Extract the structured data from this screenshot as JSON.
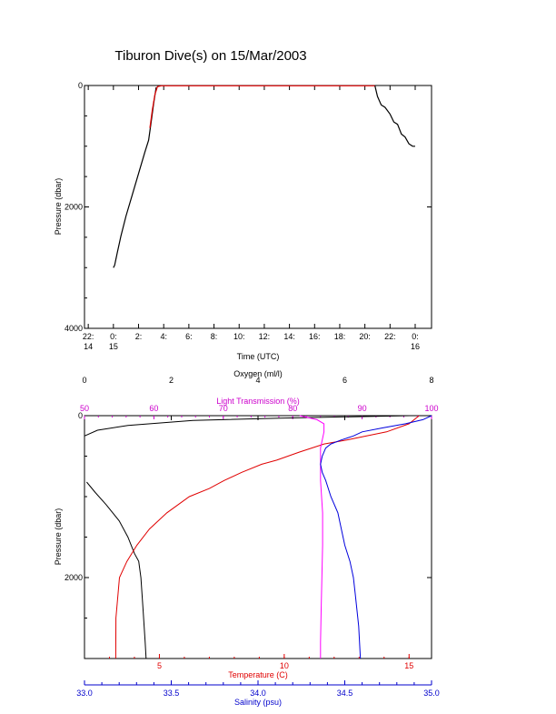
{
  "title": "Tiburon Dive(s) on 15/Mar/2003",
  "chart_data": [
    {
      "type": "line",
      "title": "Tiburon Dive(s) on 15/Mar/2003",
      "xlabel": "Time (UTC)",
      "ylabel": "Pressure (dbar)",
      "xlim": [
        -2.3,
        25.3
      ],
      "ylim": [
        4000,
        0
      ],
      "x_ticks": [
        {
          "v": -2,
          "line1": "22:",
          "line2": "14"
        },
        {
          "v": 0,
          "line1": "0:",
          "line2": "15"
        },
        {
          "v": 2,
          "line1": "2:",
          "line2": ""
        },
        {
          "v": 4,
          "line1": "4:",
          "line2": ""
        },
        {
          "v": 6,
          "line1": "6:",
          "line2": ""
        },
        {
          "v": 8,
          "line1": "8:",
          "line2": ""
        },
        {
          "v": 10,
          "line1": "10:",
          "line2": ""
        },
        {
          "v": 12,
          "line1": "12:",
          "line2": ""
        },
        {
          "v": 14,
          "line1": "14:",
          "line2": ""
        },
        {
          "v": 16,
          "line1": "16:",
          "line2": ""
        },
        {
          "v": 18,
          "line1": "18:",
          "line2": ""
        },
        {
          "v": 20,
          "line1": "20:",
          "line2": ""
        },
        {
          "v": 22,
          "line1": "22:",
          "line2": ""
        },
        {
          "v": 24,
          "line1": "0:",
          "line2": "16"
        }
      ],
      "y_ticks": [
        0,
        2000,
        4000
      ],
      "series": [
        {
          "color": "#000000",
          "x": [
            0.0,
            0.1,
            0.3,
            0.6,
            1.0,
            1.5,
            2.0,
            2.5,
            2.8,
            3.0,
            3.2,
            3.4
          ],
          "y": [
            3000,
            2960,
            2760,
            2480,
            2150,
            1800,
            1450,
            1100,
            900,
            600,
            300,
            30
          ]
        },
        {
          "color": "#e00000",
          "x": [
            2.9,
            3.1,
            3.3,
            3.5,
            3.8,
            5,
            10,
            15,
            20.0,
            20.8
          ],
          "y": [
            700,
            400,
            150,
            20,
            5,
            5,
            5,
            5,
            5,
            5
          ]
        },
        {
          "color": "#000000",
          "x": [
            20.8,
            21.0,
            21.3,
            21.6,
            22.0,
            22.3,
            22.6,
            22.9,
            23.2,
            23.5,
            23.8,
            24.0
          ],
          "y": [
            5,
            180,
            320,
            360,
            470,
            600,
            640,
            800,
            850,
            960,
            1000,
            1000
          ]
        }
      ]
    },
    {
      "type": "line",
      "ylabel": "Pressure (dbar)",
      "ylim": [
        3000,
        0
      ],
      "y_ticks": [
        0,
        2000
      ],
      "axes": {
        "oxygen": {
          "label": "Oxygen (ml/l)",
          "range": [
            0,
            8
          ],
          "ticks": [
            0,
            2,
            4,
            6,
            8
          ]
        },
        "light": {
          "label": "Light Transmission (%)",
          "range": [
            50,
            100
          ],
          "ticks": [
            50,
            60,
            70,
            80,
            90,
            100
          ]
        },
        "temperature": {
          "label": "Temperature (C)",
          "range": [
            2,
            15.9
          ],
          "ticks": [
            5,
            10,
            15
          ]
        },
        "salinity": {
          "label": "Salinity (psu)",
          "range": [
            33.0,
            35.0
          ],
          "ticks": [
            "33.0",
            "33.5",
            "34.0",
            "34.5",
            "35.0"
          ]
        }
      },
      "series": [
        {
          "axis": "oxygen",
          "color": "#000000",
          "p": [
            250,
            180,
            120,
            60,
            30,
            0
          ],
          "v": [
            0,
            0.3,
            1.0,
            2.5,
            4.5,
            7.5
          ]
        },
        {
          "axis": "oxygen",
          "color": "#000000",
          "p": [
            820,
            950,
            1100,
            1300,
            1500,
            1700,
            1800,
            2000,
            2400,
            2800,
            3000
          ],
          "v": [
            0.05,
            0.25,
            0.5,
            0.8,
            1.0,
            1.15,
            1.25,
            1.3,
            1.35,
            1.4,
            1.42
          ]
        },
        {
          "axis": "temperature",
          "color": "#e00000",
          "p": [
            3000,
            2500,
            2000,
            1800,
            1600,
            1400,
            1200,
            1000,
            900,
            800,
            700,
            600,
            550,
            450,
            350,
            300,
            250,
            200,
            100,
            0
          ],
          "v": [
            3.25,
            3.26,
            3.4,
            3.7,
            4.1,
            4.6,
            5.3,
            6.2,
            7.0,
            7.6,
            8.3,
            9.1,
            9.7,
            10.6,
            11.6,
            12.5,
            13.3,
            14.1,
            15.0,
            15.4
          ]
        },
        {
          "axis": "light",
          "color": "#ff00ff",
          "p": [
            0,
            50,
            100,
            200,
            400,
            800,
            1200,
            1600,
            2000,
            2400,
            2800,
            3000
          ],
          "v": [
            81,
            83.5,
            84.5,
            84.5,
            84.0,
            84.0,
            84.3,
            84.3,
            84.2,
            84.1,
            84.0,
            84.0
          ]
        },
        {
          "axis": "salinity",
          "color": "#0000dd",
          "p": [
            3000,
            2600,
            2200,
            2000,
            1800,
            1600,
            1400,
            1200,
            1000,
            800,
            700,
            600,
            500,
            400,
            350,
            300,
            250,
            200,
            150,
            100,
            50,
            0
          ],
          "v": [
            34.59,
            34.58,
            34.56,
            34.55,
            34.53,
            34.5,
            34.48,
            34.46,
            34.42,
            34.39,
            34.37,
            34.36,
            34.37,
            34.39,
            34.42,
            34.48,
            34.55,
            34.6,
            34.72,
            34.85,
            34.95,
            35.0
          ]
        }
      ]
    }
  ]
}
